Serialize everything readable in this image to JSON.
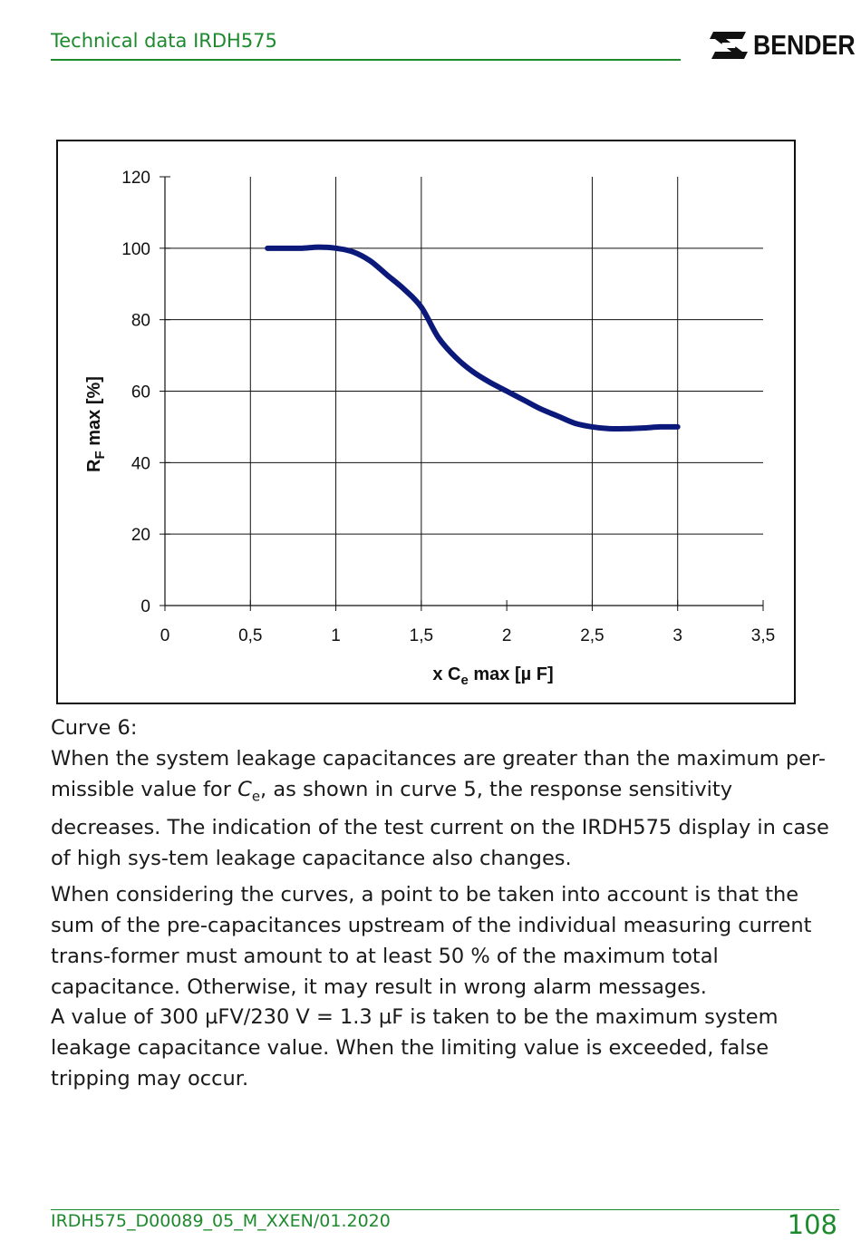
{
  "header": {
    "title": "Technical data IRDH575",
    "logo_text": "BENDER"
  },
  "chart_data": {
    "type": "line",
    "x": [
      0.6,
      0.7,
      0.8,
      0.9,
      1.0,
      1.1,
      1.2,
      1.3,
      1.4,
      1.5,
      1.6,
      1.7,
      1.8,
      1.9,
      2.0,
      2.1,
      2.2,
      2.3,
      2.4,
      2.5,
      2.6,
      2.7,
      2.8,
      2.9,
      3.0
    ],
    "series": [
      {
        "values": [
          100,
          100,
          100,
          100.3,
          100,
          99,
          96.5,
          92.5,
          88.5,
          83.5,
          75,
          69.5,
          65.5,
          62.5,
          60,
          57.5,
          55,
          53,
          51,
          50,
          49.5,
          49.5,
          49.7,
          50,
          50
        ]
      }
    ],
    "xlim": [
      0,
      3.5
    ],
    "ylim": [
      0,
      120
    ],
    "x_ticks": [
      "0",
      "0,5",
      "1",
      "1,5",
      "2",
      "2,5",
      "3",
      "3,5"
    ],
    "y_ticks": [
      "0",
      "20",
      "40",
      "60",
      "80",
      "100",
      "120"
    ],
    "xlabel_prefix": "x C",
    "xlabel_sub": "e",
    "xlabel_suffix": " max   [µ F]",
    "ylabel_prefix": "R",
    "ylabel_sub": "F",
    "ylabel_suffix": " max  [%]",
    "line_color": "#0b1a7a",
    "grid": true
  },
  "body": {
    "curve_label": "Curve 6:",
    "p1_before": "When the system leakage capacitances are greater than the maximum per-missible value for ",
    "p1_sym": "C",
    "p1_sub": "e",
    "p1_after": ", as shown in curve 5, the response sensitivity decreases. The indication of the test current on the IRDH575 display in case of high sys-tem leakage capacitance also changes.",
    "p2": "When considering the curves, a point to be taken into account is that the sum of the pre-capacitances upstream of the individual measuring current trans-former must amount to at least 50 % of the maximum total capacitance. Otherwise, it may result in wrong alarm messages.",
    "p3": "A value of 300 µFV/230 V = 1.3 µF is taken to be the maximum system leakage capacitance value. When the limiting value is exceeded, false tripping may occur."
  },
  "footer": {
    "doc_id": "IRDH575_D00089_05_M_XXEN/01.2020",
    "page_number": "108"
  }
}
